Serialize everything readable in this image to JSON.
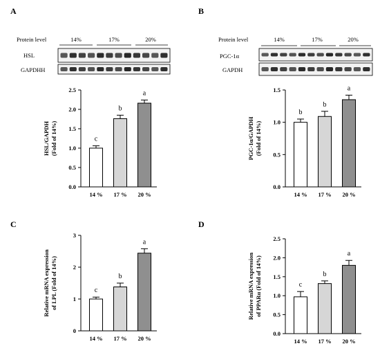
{
  "panels": [
    {
      "label": "A"
    },
    {
      "label": "B"
    },
    {
      "label": "C"
    },
    {
      "label": "D"
    }
  ],
  "blots": [
    {
      "protein_level_label": "Protein level",
      "groups": [
        "14%",
        "17%",
        "20%"
      ],
      "rows": [
        "HSL",
        "GAPDHH"
      ]
    },
    {
      "protein_level_label": "Protein level",
      "groups": [
        "14%",
        "17%",
        "20%"
      ],
      "rows": [
        "PGC-1α",
        "GAPDH"
      ]
    }
  ],
  "colors": {
    "bar_14": "#ffffff",
    "bar_17": "#d6d6d6",
    "bar_20": "#8f8f8f",
    "axis": "#000000",
    "band": "#1a1a1a"
  },
  "chart_data": [
    {
      "type": "bar",
      "panel": "A",
      "categories": [
        "14 %",
        "17 %",
        "20 %"
      ],
      "values": [
        1.0,
        1.76,
        2.16
      ],
      "errors": [
        0.06,
        0.09,
        0.08
      ],
      "significance": [
        "c",
        "b",
        "a"
      ],
      "ylabel_lines": [
        "HSL/GAPDH",
        "(Fold of 14%)"
      ],
      "ylim": [
        0,
        2.5
      ],
      "yticks": [
        "0.0",
        "0.5",
        "1.0",
        "1.5",
        "2.0",
        "2.5"
      ],
      "ytick_values": [
        0,
        0.5,
        1.0,
        1.5,
        2.0,
        2.5
      ]
    },
    {
      "type": "bar",
      "panel": "B",
      "categories": [
        "14 %",
        "17 %",
        "20 %"
      ],
      "values": [
        1.0,
        1.09,
        1.35
      ],
      "errors": [
        0.05,
        0.08,
        0.07
      ],
      "significance": [
        "b",
        "b",
        "a"
      ],
      "ylabel_lines": [
        "PGC-1α/GAPDH",
        "(Fold of 14%)"
      ],
      "ylim": [
        0,
        1.5
      ],
      "yticks": [
        "0.0",
        "0.5",
        "1.0",
        "1.5"
      ],
      "ytick_values": [
        0,
        0.5,
        1.0,
        1.5
      ]
    },
    {
      "type": "bar",
      "panel": "C",
      "categories": [
        "14 %",
        "17 %",
        "20 %"
      ],
      "values": [
        1.0,
        1.38,
        2.44
      ],
      "errors": [
        0.06,
        0.12,
        0.14
      ],
      "significance": [
        "c",
        "b",
        "a"
      ],
      "ylabel_lines": [
        "Relative mRNA expression",
        "of LPL (Fold of 14%)"
      ],
      "ylim": [
        0,
        3
      ],
      "yticks": [
        "0",
        "1",
        "2",
        "3"
      ],
      "ytick_values": [
        0,
        1,
        2,
        3
      ]
    },
    {
      "type": "bar",
      "panel": "D",
      "categories": [
        "14 %",
        "17 %",
        "20 %"
      ],
      "values": [
        0.97,
        1.32,
        1.8
      ],
      "errors": [
        0.14,
        0.07,
        0.13
      ],
      "significance": [
        "c",
        "b",
        "a"
      ],
      "ylabel_lines": [
        "Relative mRNA expression",
        "of PPARα (Fold of 14%)"
      ],
      "ylim": [
        0,
        2.5
      ],
      "yticks": [
        "0.0",
        "0.5",
        "1.0",
        "1.5",
        "2.0",
        "2.5"
      ],
      "ytick_values": [
        0,
        0.5,
        1.0,
        1.5,
        2.0,
        2.5
      ]
    }
  ]
}
